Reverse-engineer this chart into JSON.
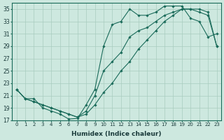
{
  "xlabel": "Humidex (Indice chaleur)",
  "ylabel": "",
  "bg_color": "#cde8df",
  "grid_color": "#a8ccbf",
  "line_color": "#1a6b5a",
  "xlim": [
    -0.5,
    23.5
  ],
  "ylim": [
    17,
    36
  ],
  "xticks": [
    0,
    1,
    2,
    3,
    4,
    5,
    6,
    7,
    8,
    9,
    10,
    11,
    12,
    13,
    14,
    15,
    16,
    17,
    18,
    19,
    20,
    21,
    22,
    23
  ],
  "yticks": [
    17,
    19,
    21,
    23,
    25,
    27,
    29,
    31,
    33,
    35
  ],
  "line1_x": [
    0,
    1,
    2,
    3,
    4,
    5,
    6,
    7,
    8,
    9,
    10,
    11,
    12,
    13,
    14,
    15,
    16,
    17,
    18,
    19,
    20,
    21,
    22,
    23
  ],
  "line1_y": [
    22.0,
    20.5,
    20.5,
    19.0,
    18.5,
    18.0,
    17.2,
    17.3,
    19.5,
    22.0,
    29.0,
    32.5,
    33.0,
    35.0,
    34.0,
    34.0,
    34.5,
    35.5,
    35.5,
    35.5,
    33.5,
    33.0,
    30.5,
    31.0
  ],
  "line2_x": [
    0,
    1,
    2,
    3,
    4,
    5,
    6,
    7,
    8,
    9,
    10,
    11,
    12,
    13,
    14,
    15,
    16,
    17,
    18,
    19,
    20,
    21,
    22,
    23
  ],
  "line2_y": [
    22.0,
    20.5,
    20.0,
    19.5,
    19.0,
    18.5,
    18.0,
    17.5,
    18.0,
    19.5,
    21.5,
    23.0,
    25.0,
    26.5,
    28.5,
    30.0,
    31.5,
    33.0,
    34.0,
    35.0,
    35.0,
    35.0,
    34.5,
    29.0
  ],
  "line3_x": [
    0,
    1,
    2,
    3,
    4,
    5,
    6,
    7,
    8,
    9,
    10,
    11,
    12,
    13,
    14,
    15,
    16,
    17,
    18,
    19,
    20,
    21,
    22,
    23
  ],
  "line3_y": [
    22.0,
    20.5,
    20.0,
    19.5,
    19.0,
    18.5,
    18.0,
    17.5,
    18.5,
    21.0,
    25.0,
    26.5,
    28.0,
    30.5,
    31.5,
    32.0,
    33.0,
    34.0,
    34.5,
    35.0,
    35.0,
    34.5,
    34.0,
    29.0
  ]
}
